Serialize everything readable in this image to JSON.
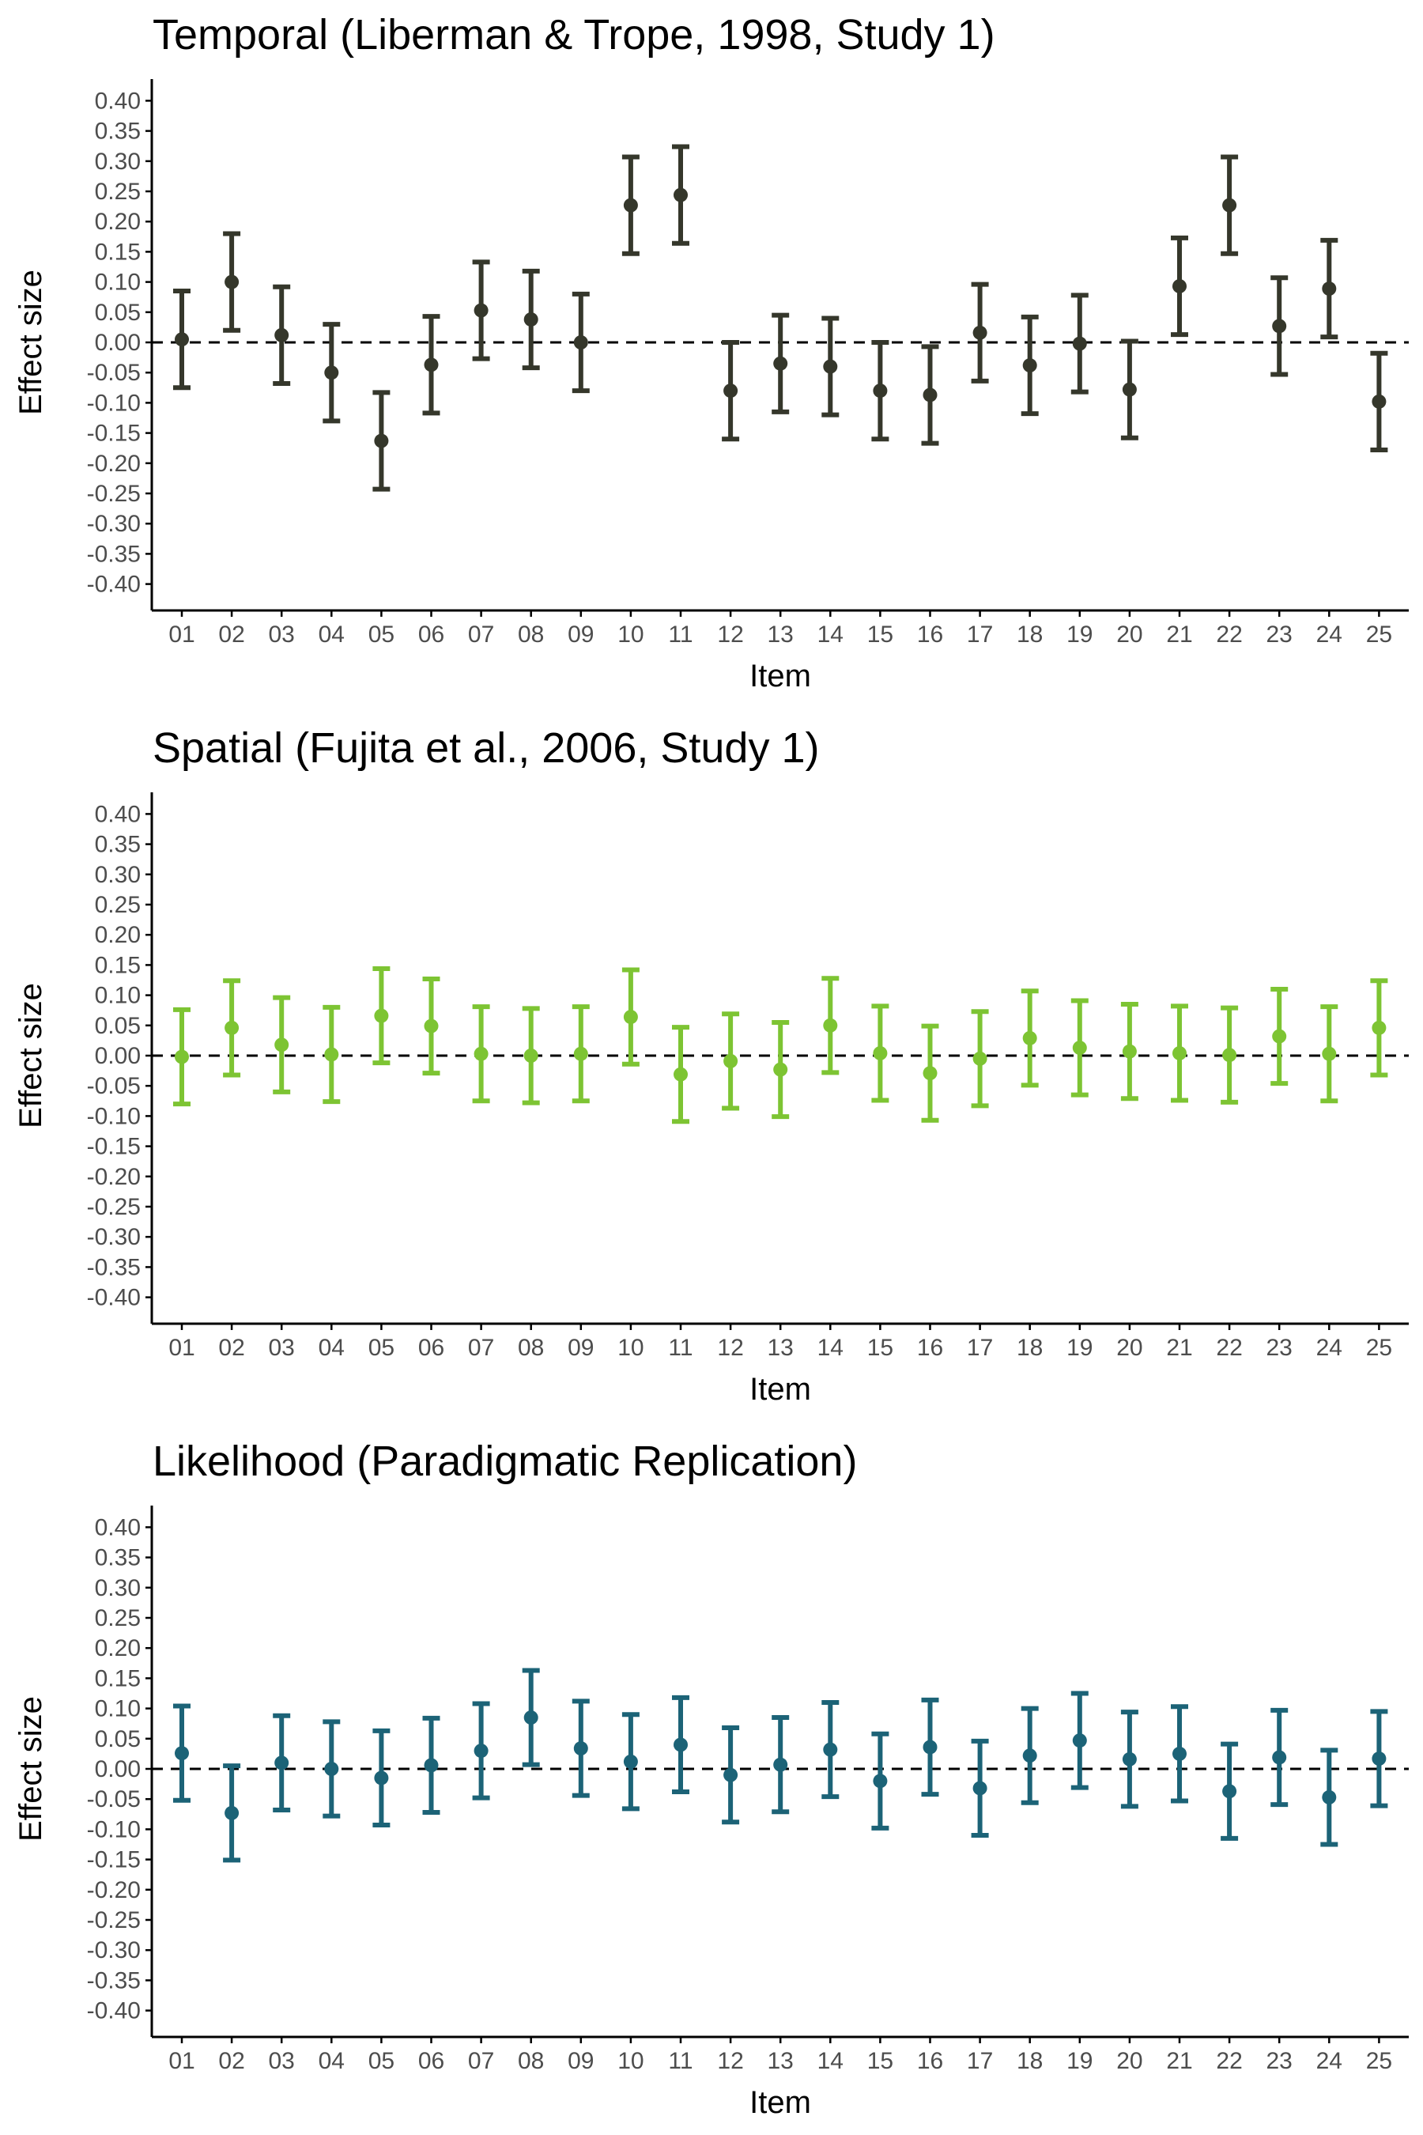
{
  "chart_data": [
    {
      "type": "scatter",
      "title": "Temporal (Liberman & Trope, 1998, Study 1)",
      "xlabel": "Item",
      "ylabel": "Effect size",
      "categories": [
        "01",
        "02",
        "03",
        "04",
        "05",
        "06",
        "07",
        "08",
        "09",
        "10",
        "11",
        "12",
        "13",
        "14",
        "15",
        "16",
        "17",
        "18",
        "19",
        "20",
        "21",
        "22",
        "23",
        "24",
        "25"
      ],
      "ylim": [
        -0.45,
        0.43
      ],
      "yticks": [
        0.4,
        0.35,
        0.3,
        0.25,
        0.2,
        0.15,
        0.1,
        0.05,
        0.0,
        -0.05,
        -0.1,
        -0.15,
        -0.2,
        -0.25,
        -0.3,
        -0.35,
        -0.4
      ],
      "ytick_labels": [
        "0.40",
        "0.35",
        "0.30",
        "0.25",
        "0.20",
        "0.15",
        "0.10",
        "0.05",
        "0.00",
        "-0.05",
        "-0.10",
        "-0.15",
        "-0.20",
        "-0.25",
        "-0.30",
        "-0.35",
        "-0.40"
      ],
      "reference_line": 0.0,
      "grid": false,
      "color": "#35372b",
      "series": [
        {
          "values": [
            0.005,
            0.1,
            0.012,
            -0.05,
            -0.163,
            -0.037,
            0.053,
            0.038,
            0.0,
            0.227,
            0.244,
            -0.08,
            -0.035,
            -0.04,
            -0.08,
            -0.087,
            0.016,
            -0.038,
            -0.002,
            -0.078,
            0.093,
            0.227,
            0.027,
            0.089,
            -0.098
          ],
          "lower": [
            -0.075,
            0.02,
            -0.068,
            -0.13,
            -0.243,
            -0.117,
            -0.027,
            -0.042,
            -0.08,
            0.147,
            0.164,
            -0.16,
            -0.115,
            -0.12,
            -0.16,
            -0.167,
            -0.064,
            -0.118,
            -0.082,
            -0.158,
            0.013,
            0.147,
            -0.053,
            0.009,
            -0.178
          ],
          "upper": [
            0.085,
            0.18,
            0.092,
            0.03,
            -0.083,
            0.043,
            0.133,
            0.118,
            0.08,
            0.307,
            0.324,
            0.0,
            0.045,
            0.04,
            0.0,
            -0.007,
            0.096,
            0.042,
            0.078,
            0.002,
            0.173,
            0.307,
            0.107,
            0.169,
            -0.018
          ]
        }
      ]
    },
    {
      "type": "scatter",
      "title": "Spatial (Fujita et al., 2006, Study 1)",
      "xlabel": "Item",
      "ylabel": "Effect size",
      "categories": [
        "01",
        "02",
        "03",
        "04",
        "05",
        "06",
        "07",
        "08",
        "09",
        "10",
        "11",
        "12",
        "13",
        "14",
        "15",
        "16",
        "17",
        "18",
        "19",
        "20",
        "21",
        "22",
        "23",
        "24",
        "25"
      ],
      "ylim": [
        -0.45,
        0.43
      ],
      "yticks": [
        0.4,
        0.35,
        0.3,
        0.25,
        0.2,
        0.15,
        0.1,
        0.05,
        0.0,
        -0.05,
        -0.1,
        -0.15,
        -0.2,
        -0.25,
        -0.3,
        -0.35,
        -0.4
      ],
      "ytick_labels": [
        "0.40",
        "0.35",
        "0.30",
        "0.25",
        "0.20",
        "0.15",
        "0.10",
        "0.05",
        "0.00",
        "-0.05",
        "-0.10",
        "-0.15",
        "-0.20",
        "-0.25",
        "-0.30",
        "-0.35",
        "-0.40"
      ],
      "reference_line": 0.0,
      "grid": false,
      "color": "#7dc433",
      "series": [
        {
          "values": [
            -0.002,
            0.046,
            0.018,
            0.002,
            0.066,
            0.049,
            0.003,
            0.0,
            0.003,
            0.064,
            -0.031,
            -0.009,
            -0.023,
            0.05,
            0.004,
            -0.029,
            -0.005,
            0.029,
            0.013,
            0.007,
            0.004,
            0.001,
            0.032,
            0.003,
            0.046
          ],
          "lower": [
            -0.08,
            -0.032,
            -0.06,
            -0.076,
            -0.012,
            -0.029,
            -0.075,
            -0.078,
            -0.075,
            -0.014,
            -0.109,
            -0.087,
            -0.101,
            -0.028,
            -0.074,
            -0.107,
            -0.083,
            -0.049,
            -0.065,
            -0.071,
            -0.074,
            -0.077,
            -0.046,
            -0.075,
            -0.032
          ],
          "upper": [
            0.076,
            0.124,
            0.096,
            0.08,
            0.144,
            0.127,
            0.081,
            0.078,
            0.081,
            0.142,
            0.047,
            0.069,
            0.055,
            0.128,
            0.082,
            0.049,
            0.073,
            0.107,
            0.091,
            0.085,
            0.082,
            0.079,
            0.11,
            0.081,
            0.124
          ]
        }
      ]
    },
    {
      "type": "scatter",
      "title": "Likelihood (Paradigmatic Replication)",
      "xlabel": "Item",
      "ylabel": "Effect size",
      "categories": [
        "01",
        "02",
        "03",
        "04",
        "05",
        "06",
        "07",
        "08",
        "09",
        "10",
        "11",
        "12",
        "13",
        "14",
        "15",
        "16",
        "17",
        "18",
        "19",
        "20",
        "21",
        "22",
        "23",
        "24",
        "25"
      ],
      "ylim": [
        -0.45,
        0.43
      ],
      "yticks": [
        0.4,
        0.35,
        0.3,
        0.25,
        0.2,
        0.15,
        0.1,
        0.05,
        0.0,
        -0.05,
        -0.1,
        -0.15,
        -0.2,
        -0.25,
        -0.3,
        -0.35,
        -0.4
      ],
      "ytick_labels": [
        "0.40",
        "0.35",
        "0.30",
        "0.25",
        "0.20",
        "0.15",
        "0.10",
        "0.05",
        "0.00",
        "-0.05",
        "-0.10",
        "-0.15",
        "-0.20",
        "-0.25",
        "-0.30",
        "-0.35",
        "-0.40"
      ],
      "reference_line": 0.0,
      "grid": false,
      "color": "#1c6377",
      "series": [
        {
          "values": [
            0.026,
            -0.073,
            0.01,
            0.0,
            -0.015,
            0.006,
            0.03,
            0.085,
            0.034,
            0.012,
            0.04,
            -0.01,
            0.007,
            0.032,
            -0.02,
            0.036,
            -0.032,
            0.022,
            0.047,
            0.016,
            0.025,
            -0.037,
            0.019,
            -0.047,
            0.017
          ],
          "lower": [
            -0.052,
            -0.151,
            -0.068,
            -0.078,
            -0.093,
            -0.072,
            -0.048,
            0.007,
            -0.044,
            -0.066,
            -0.038,
            -0.088,
            -0.071,
            -0.046,
            -0.098,
            -0.042,
            -0.11,
            -0.056,
            -0.031,
            -0.062,
            -0.053,
            -0.115,
            -0.059,
            -0.125,
            -0.061
          ],
          "upper": [
            0.104,
            0.005,
            0.088,
            0.078,
            0.063,
            0.084,
            0.108,
            0.163,
            0.112,
            0.09,
            0.118,
            0.068,
            0.085,
            0.11,
            0.058,
            0.114,
            0.046,
            0.1,
            0.125,
            0.094,
            0.103,
            0.041,
            0.097,
            0.031,
            0.095
          ]
        }
      ]
    }
  ]
}
